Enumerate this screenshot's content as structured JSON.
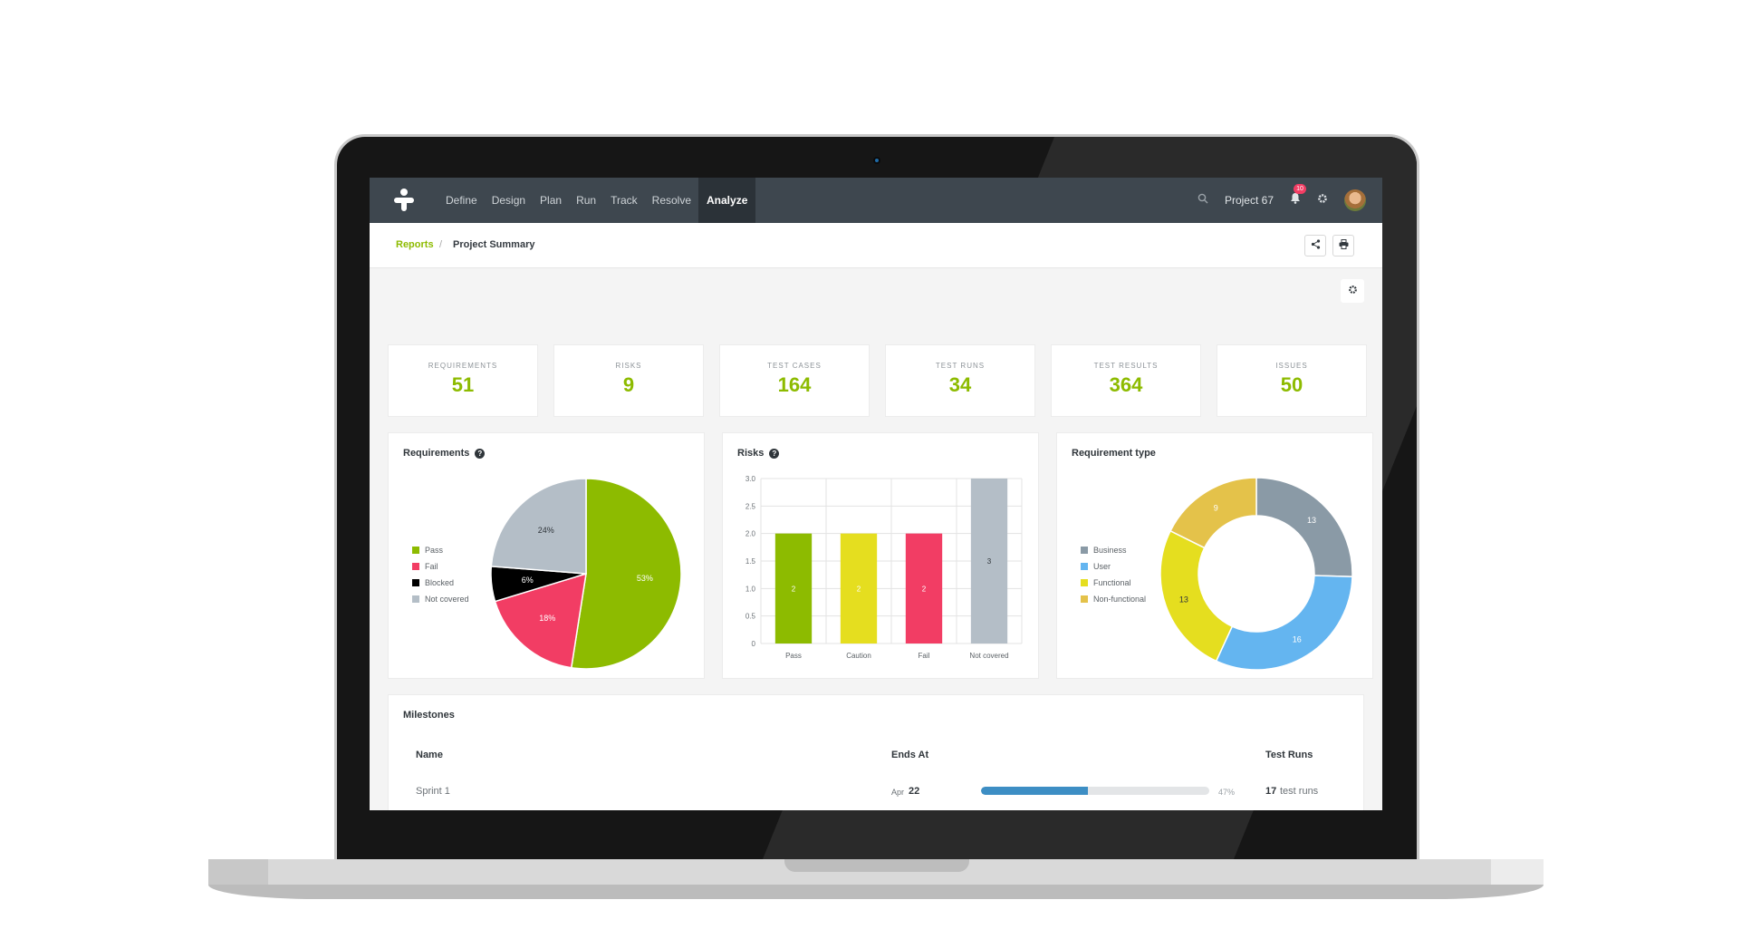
{
  "nav": {
    "items": [
      "Define",
      "Design",
      "Plan",
      "Run",
      "Track",
      "Resolve",
      "Analyze"
    ],
    "active": "Analyze",
    "project": "Project 67",
    "notifications": "10"
  },
  "breadcrumb": {
    "link": "Reports",
    "separator": "/",
    "current": "Project Summary"
  },
  "stats": [
    {
      "label": "REQUIREMENTS",
      "value": "51"
    },
    {
      "label": "RISKS",
      "value": "9"
    },
    {
      "label": "TEST CASES",
      "value": "164"
    },
    {
      "label": "TEST RUNS",
      "value": "34"
    },
    {
      "label": "TEST RESULTS",
      "value": "364"
    },
    {
      "label": "ISSUES",
      "value": "50"
    }
  ],
  "cards": {
    "requirements": {
      "title": "Requirements"
    },
    "risks": {
      "title": "Risks"
    },
    "requirement_type": {
      "title": "Requirement type"
    }
  },
  "chart_data": [
    {
      "type": "pie",
      "title": "Requirements",
      "categories": [
        "Pass",
        "Fail",
        "Blocked",
        "Not covered"
      ],
      "values": [
        53,
        18,
        6,
        24
      ],
      "labels": [
        "53%",
        "18%",
        "6%",
        "24%"
      ],
      "colors": [
        "#8dbb00",
        "#f23d64",
        "#000000",
        "#b4bec7"
      ],
      "legend": "left"
    },
    {
      "type": "bar",
      "title": "Risks",
      "categories": [
        "Pass",
        "Caution",
        "Fail",
        "Not covered"
      ],
      "values": [
        2,
        2,
        2,
        3
      ],
      "colors": [
        "#8dbb00",
        "#e5de1f",
        "#f23d64",
        "#b4bec7"
      ],
      "ylim": [
        0,
        3.0
      ],
      "yticks": [
        "0",
        "0.5",
        "1.0",
        "1.5",
        "2.0",
        "2.5",
        "3.0"
      ],
      "grid": true
    },
    {
      "type": "pie",
      "title": "Requirement type",
      "donut": true,
      "categories": [
        "Business",
        "User",
        "Functional",
        "Non-functional"
      ],
      "values": [
        13,
        16,
        13,
        9
      ],
      "colors": [
        "#8a9aa6",
        "#64b5f0",
        "#e5de1f",
        "#e4c24a"
      ],
      "legend": "left"
    }
  ],
  "milestones": {
    "title": "Milestones",
    "headers": {
      "name": "Name",
      "ends_at": "Ends At",
      "test_runs": "Test Runs"
    },
    "rows": [
      {
        "name": "Sprint 1",
        "ends_month": "Apr",
        "ends_day": "22",
        "progress_pct": 47,
        "progress_label": "47%",
        "runs_count": "17",
        "runs_text": "test runs"
      }
    ]
  },
  "icons": [
    "logo-icon",
    "search-icon",
    "bell-icon",
    "gear-icon",
    "share-icon",
    "print-icon",
    "help-icon"
  ]
}
